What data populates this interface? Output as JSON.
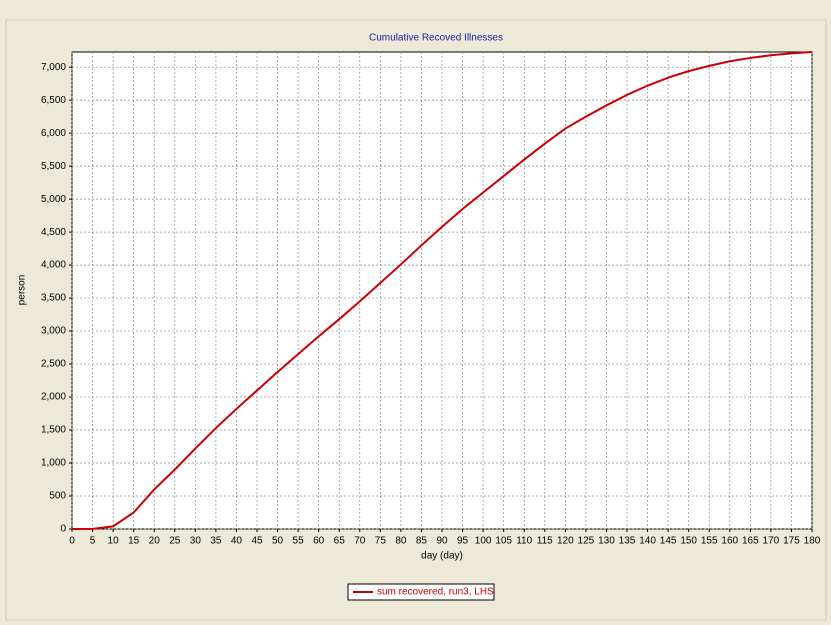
{
  "chart_data": {
    "type": "line",
    "title": "Cumulative Recoved Illnesses",
    "xlabel": "day (day)",
    "ylabel": "person",
    "x": [
      0,
      5,
      10,
      15,
      20,
      25,
      30,
      35,
      40,
      45,
      50,
      55,
      60,
      65,
      70,
      75,
      80,
      85,
      90,
      95,
      100,
      105,
      110,
      115,
      120,
      125,
      130,
      135,
      140,
      145,
      150,
      155,
      160,
      165,
      170,
      175,
      180
    ],
    "series": [
      {
        "name": "sum recovered, run3, LHS",
        "color": "#cc0000",
        "values": [
          0,
          2,
          40,
          250,
          600,
          900,
          1220,
          1530,
          1820,
          2100,
          2380,
          2650,
          2920,
          3180,
          3450,
          3730,
          4010,
          4300,
          4580,
          4850,
          5100,
          5350,
          5600,
          5840,
          6070,
          6250,
          6420,
          6580,
          6720,
          6840,
          6940,
          7020,
          7090,
          7140,
          7180,
          7210,
          7230
        ]
      }
    ],
    "xlim": [
      0,
      180
    ],
    "xticks": [
      0,
      5,
      10,
      15,
      20,
      25,
      30,
      35,
      40,
      45,
      50,
      55,
      60,
      65,
      70,
      75,
      80,
      85,
      90,
      95,
      100,
      105,
      110,
      115,
      120,
      125,
      130,
      135,
      140,
      145,
      150,
      155,
      160,
      165,
      170,
      175,
      180
    ],
    "ylim": [
      0,
      7230
    ],
    "yticks": [
      0,
      500,
      {
        "value": 1000,
        "label": "1,000"
      },
      {
        "value": 1500,
        "label": "1,500"
      },
      {
        "value": 2000,
        "label": "2,000"
      },
      {
        "value": 2500,
        "label": "2,500"
      },
      {
        "value": 3000,
        "label": "3,000"
      },
      {
        "value": 3500,
        "label": "3,500"
      },
      {
        "value": 4000,
        "label": "4,000"
      },
      {
        "value": 4500,
        "label": "4,500"
      },
      {
        "value": 5000,
        "label": "5,000"
      },
      {
        "value": 5500,
        "label": "5,500"
      },
      {
        "value": 6000,
        "label": "6,000"
      },
      {
        "value": 6500,
        "label": "6,500"
      },
      {
        "value": 7000,
        "label": "7,000"
      }
    ],
    "grid": true,
    "legend": "bottom"
  }
}
